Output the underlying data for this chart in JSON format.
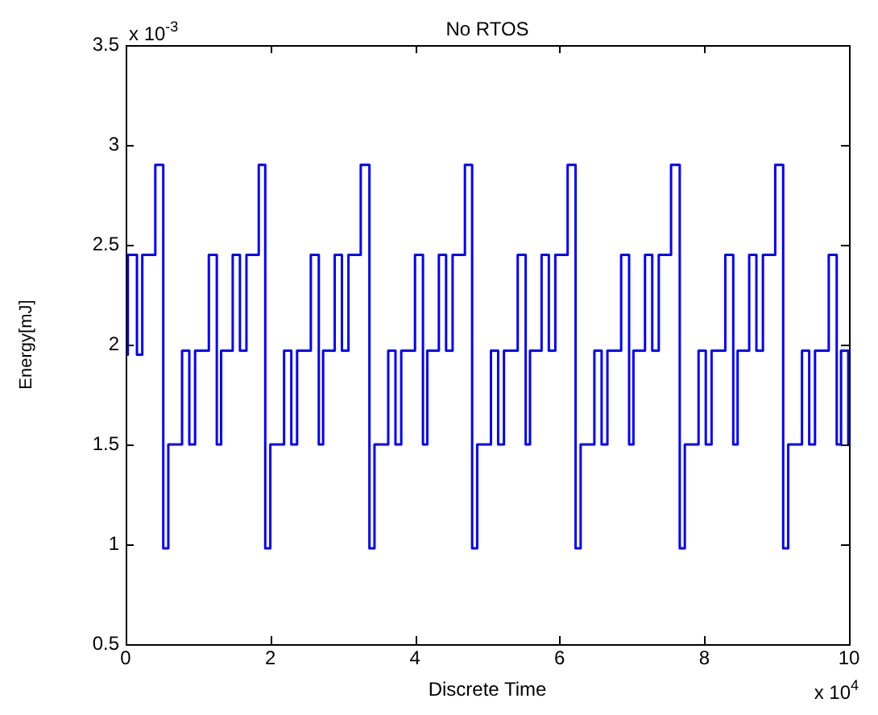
{
  "chart_data": {
    "type": "step",
    "title": "No RTOS",
    "xlabel": "Discrete Time",
    "ylabel": "Energy[mJ]",
    "annotations": [
      "x 10$^{-3}$",
      "x 10$^{4}$"
    ],
    "x": [
      0,
      0.03,
      0.156,
      0.23,
      0.41,
      0.52,
      0.59,
      0.78,
      0.88,
      0.96,
      1.15,
      1.26,
      1.32,
      1.48,
      1.58,
      1.67,
      1.84,
      1.93,
      2.0,
      2.19,
      2.29,
      2.37,
      2.56,
      2.67,
      2.73,
      2.89,
      2.99,
      3.08,
      3.25,
      3.37,
      3.44,
      3.63,
      3.73,
      3.81,
      4.0,
      4.11,
      4.17,
      4.33,
      4.43,
      4.52,
      4.69,
      4.79,
      4.86,
      5.05,
      5.15,
      5.23,
      5.42,
      5.53,
      5.59,
      5.75,
      5.85,
      5.94,
      6.11,
      6.22,
      6.29,
      6.48,
      6.58,
      6.66,
      6.85,
      6.96,
      7.02,
      7.18,
      7.28,
      7.37,
      7.54,
      7.66,
      7.73,
      7.92,
      8.02,
      8.1,
      8.29,
      8.4,
      8.46,
      8.62,
      8.72,
      8.81,
      8.98,
      9.09,
      9.16,
      9.35,
      9.45,
      9.53,
      9.72,
      9.83,
      9.89,
      9.99,
      10
    ],
    "series": [
      {
        "color": "#0000ff",
        "values": [
          1.95,
          2.45,
          1.95,
          2.45,
          2.9,
          0.98,
          1.5,
          1.97,
          1.5,
          1.97,
          2.45,
          1.5,
          1.97,
          2.45,
          1.97,
          2.45,
          2.9,
          0.98,
          1.5,
          1.97,
          1.5,
          1.97,
          2.45,
          1.5,
          1.97,
          2.45,
          1.97,
          2.45,
          2.9,
          0.98,
          1.5,
          1.97,
          1.5,
          1.97,
          2.45,
          1.5,
          1.97,
          2.45,
          1.97,
          2.45,
          2.9,
          0.98,
          1.5,
          1.97,
          1.5,
          1.97,
          2.45,
          1.5,
          1.97,
          2.45,
          1.97,
          2.45,
          2.9,
          0.98,
          1.5,
          1.97,
          1.5,
          1.97,
          2.45,
          1.5,
          1.97,
          2.45,
          1.97,
          2.45,
          2.9,
          0.98,
          1.5,
          1.97,
          1.5,
          1.97,
          2.45,
          1.5,
          1.97,
          2.45,
          1.97,
          2.45,
          2.9,
          0.98,
          1.5,
          1.97,
          1.5,
          1.97,
          2.45,
          1.5,
          1.97,
          1.5,
          1.5
        ]
      }
    ],
    "xlim": [
      0,
      10
    ],
    "ylim": [
      0.5,
      3.5
    ],
    "xticks": [
      0,
      2,
      4,
      6,
      8,
      10
    ],
    "yticks": [
      0.5,
      1,
      1.5,
      2,
      2.5,
      3,
      3.5
    ],
    "grid": false,
    "legend": false,
    "marker": "none",
    "line_style": "solid"
  }
}
